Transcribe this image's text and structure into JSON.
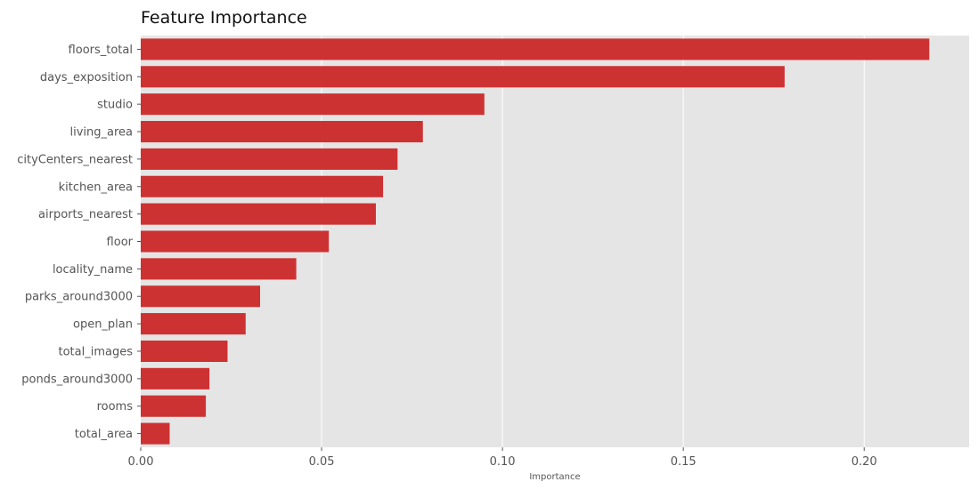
{
  "chart_data": {
    "type": "bar",
    "orientation": "horizontal",
    "title": "Feature Importance",
    "xlabel": "Importance",
    "ylabel": "",
    "xlim": [
      0,
      0.229
    ],
    "xticks": [
      0.0,
      0.05,
      0.1,
      0.15,
      0.2
    ],
    "xtick_labels": [
      "0.00",
      "0.05",
      "0.10",
      "0.15",
      "0.20"
    ],
    "grid": "vertical",
    "background": "#e5e5e5",
    "bar_color": "#cd3233",
    "categories": [
      "floors_total",
      "days_exposition",
      "studio",
      "living_area",
      "cityCenters_nearest",
      "kitchen_area",
      "airports_nearest",
      "floor",
      "locality_name",
      "parks_around3000",
      "open_plan",
      "total_images",
      "ponds_around3000",
      "rooms",
      "total_area"
    ],
    "values": [
      0.218,
      0.178,
      0.095,
      0.078,
      0.071,
      0.067,
      0.065,
      0.052,
      0.043,
      0.033,
      0.029,
      0.024,
      0.019,
      0.018,
      0.008
    ]
  }
}
